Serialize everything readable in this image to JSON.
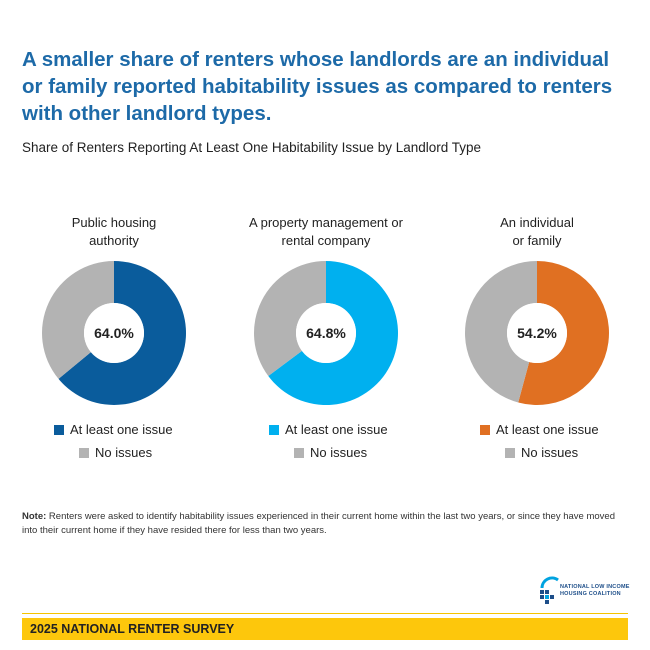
{
  "headline": "A smaller share of renters whose landlords are an individual or family reported habitability issues as compared to renters with other landlord types.",
  "subtitle": "Share of Renters Reporting At Least One Habitability Issue by Landlord Type",
  "chart_data": {
    "type": "pie",
    "charts": [
      {
        "title": "Public housing\nauthority",
        "center_label": "64.0%",
        "slices": [
          {
            "label": "At least one issue",
            "value": 64.0,
            "color": "#0a5c9c"
          },
          {
            "label": "No issues",
            "value": 36.0,
            "color": "#b3b3b3"
          }
        ]
      },
      {
        "title": "A property management or\nrental company",
        "center_label": "64.8%",
        "slices": [
          {
            "label": "At least one issue",
            "value": 64.8,
            "color": "#00b0ef"
          },
          {
            "label": "No issues",
            "value": 35.2,
            "color": "#b3b3b3"
          }
        ]
      },
      {
        "title": "An individual\nor family",
        "center_label": "54.2%",
        "slices": [
          {
            "label": "At least one issue",
            "value": 54.2,
            "color": "#e07022"
          },
          {
            "label": "No issues",
            "value": 45.8,
            "color": "#b3b3b3"
          }
        ]
      }
    ]
  },
  "note": {
    "label": "Note:",
    "text": " Renters were asked to identify habitability issues experienced in their current home within the last two years, or since they have moved into their current home if they have resided there for less than two years."
  },
  "logo": {
    "text": "NATIONAL LOW INCOME\nHOUSING COALITION",
    "icon": "nlihc-house-icon"
  },
  "footer": {
    "label": "2025 NATIONAL RENTER SURVEY"
  }
}
